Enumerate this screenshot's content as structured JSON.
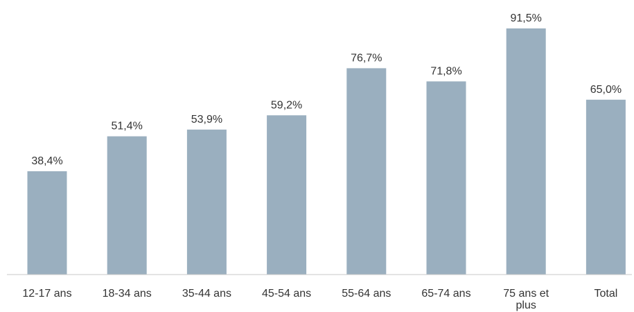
{
  "chart_data": {
    "type": "bar",
    "categories": [
      "12-17 ans",
      "18-34 ans",
      "35-44 ans",
      "45-54 ans",
      "55-64 ans",
      "65-74 ans",
      "75 ans et plus",
      "Total"
    ],
    "values": [
      38.4,
      51.4,
      53.9,
      59.2,
      76.7,
      71.8,
      91.5,
      65.0
    ],
    "data_labels": [
      "38,4%",
      "51,4%",
      "53,9%",
      "59,2%",
      "76,7%",
      "71,8%",
      "91,5%",
      "65,0%"
    ],
    "title": "",
    "xlabel": "",
    "ylabel": "",
    "ylim": [
      0,
      100
    ],
    "grid": false,
    "legend": "none",
    "bar_color": "#9aafbf"
  }
}
